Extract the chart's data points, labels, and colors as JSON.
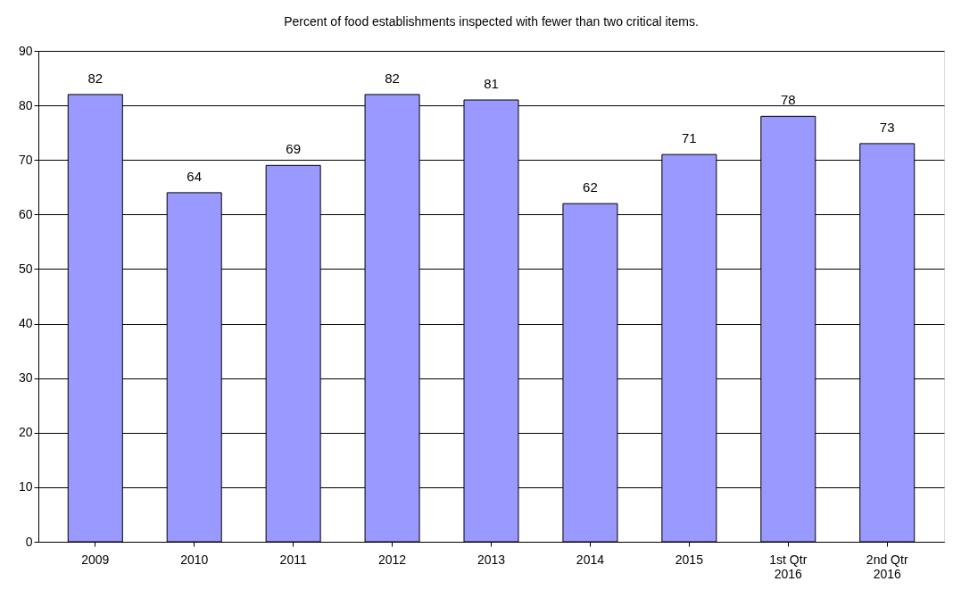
{
  "chart_data": {
    "type": "bar",
    "title": "Percent of food establishments inspected with fewer than two critical items.",
    "categories": [
      "2009",
      "2010",
      "2011",
      "2012",
      "2013",
      "2014",
      "2015",
      "1st Qtr 2016",
      "2nd Qtr 2016"
    ],
    "values": [
      82,
      64,
      69,
      82,
      81,
      62,
      71,
      78,
      73
    ],
    "color": "#9999ff",
    "ylim": [
      0,
      90
    ],
    "yticks": [
      0,
      10,
      20,
      30,
      40,
      50,
      60,
      70,
      80,
      90
    ],
    "grid": "y",
    "data_labels": true
  }
}
